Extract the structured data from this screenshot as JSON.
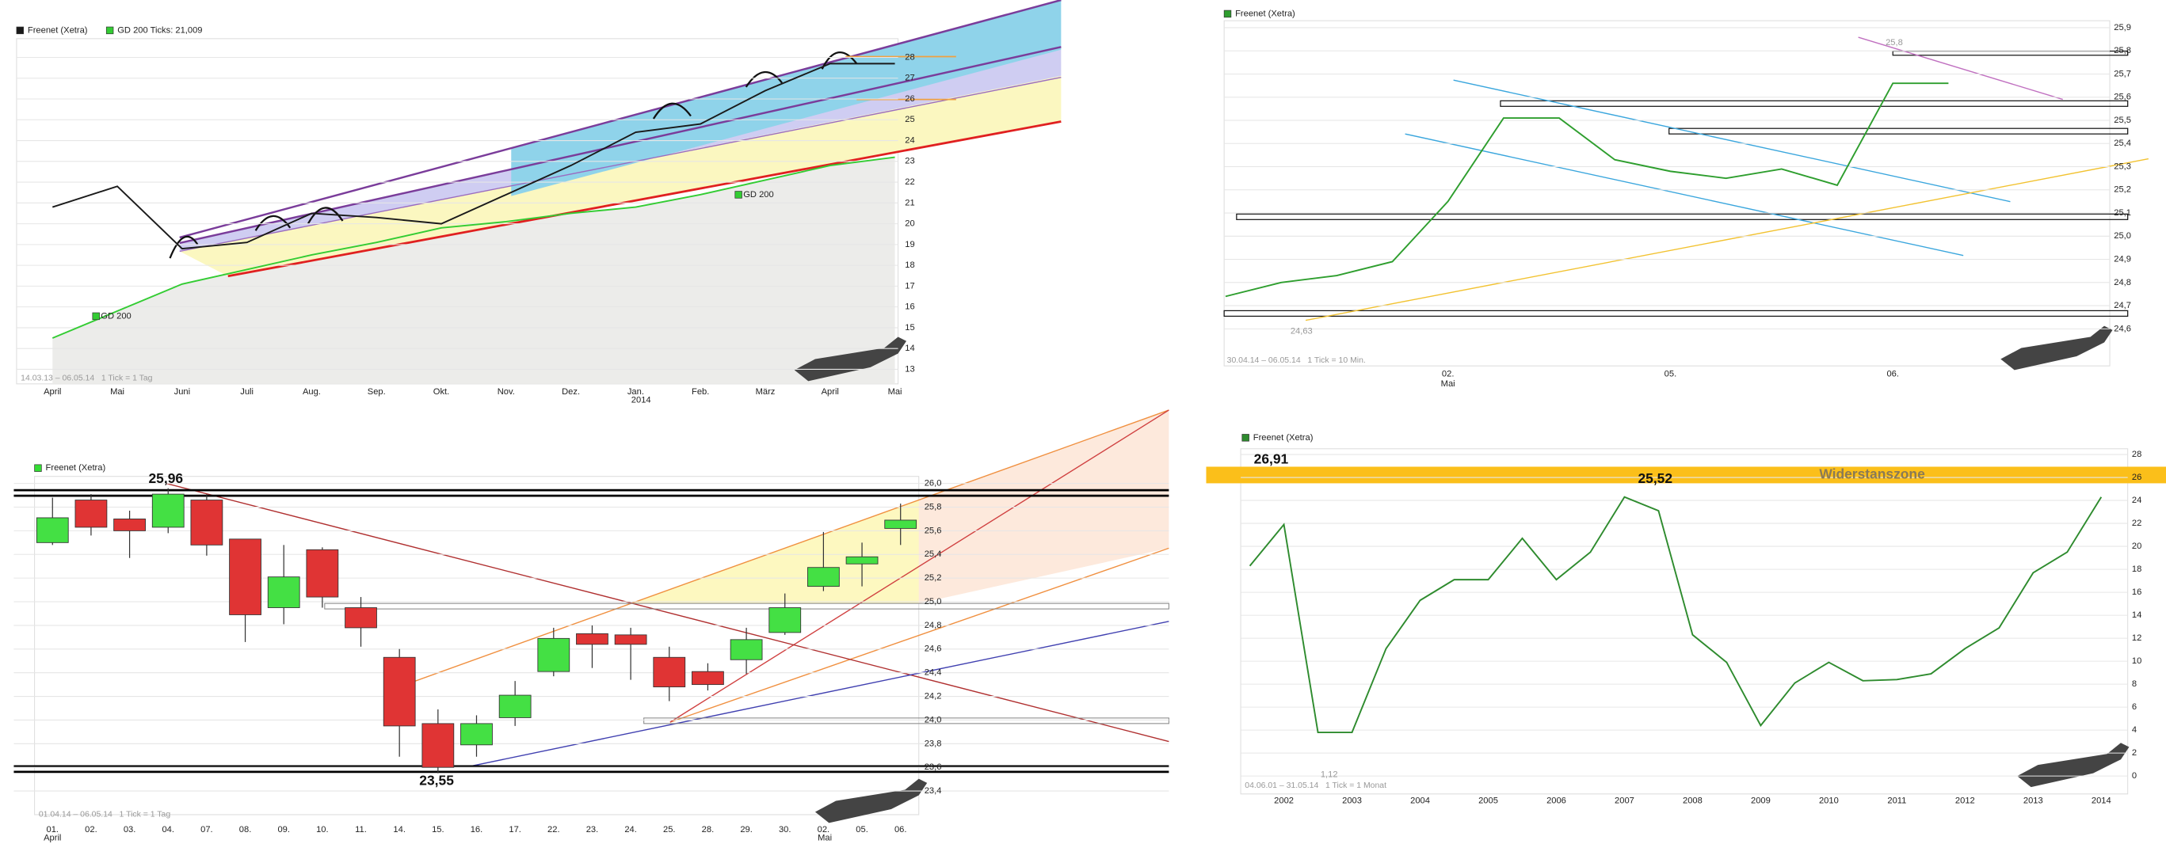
{
  "chart_data": [
    {
      "type": "line",
      "categories": [
        "April",
        "Mai",
        "Juni",
        "Juli",
        "Aug.",
        "Sep.",
        "Okt.",
        "Nov.",
        "Dez.",
        "Jan.",
        "Feb.",
        "März",
        "April",
        "Mai"
      ],
      "series": [
        {
          "name": "Freenet (Xetra)",
          "color": "#1a1a1a",
          "values": [
            20.8,
            21.8,
            18.8,
            19.1,
            20.5,
            20.3,
            20.0,
            21.4,
            22.8,
            24.4,
            24.8,
            26.4,
            27.7,
            27.7
          ]
        },
        {
          "name": "GD 200 Ticks: 21,009",
          "color": "#33cc33",
          "values": [
            14.5,
            15.8,
            17.1,
            17.8,
            18.5,
            19.1,
            19.8,
            20.1,
            20.5,
            20.8,
            21.4,
            22.1,
            22.8,
            23.2
          ]
        }
      ],
      "ylim": [
        12.3,
        28.9
      ],
      "yticks": [
        13,
        14,
        15,
        16,
        17,
        18,
        19,
        20,
        21,
        22,
        23,
        24,
        25,
        26,
        27,
        28
      ],
      "grid": true,
      "annotations": [
        "GD 200",
        "GD 200",
        "2014"
      ],
      "footnote": "14.03.13 – 06.05.14   1 Tick = 1 Tag"
    },
    {
      "type": "line",
      "categories": [
        null,
        null,
        null,
        null,
        "02.",
        null,
        null,
        null,
        "05.",
        null,
        null,
        null,
        "06.",
        null
      ],
      "series": [
        {
          "name": "Freenet (Xetra)",
          "color": "#2e9e2e",
          "values": [
            24.74,
            24.8,
            24.83,
            24.89,
            25.15,
            25.51,
            25.51,
            25.33,
            25.28,
            25.25,
            25.29,
            25.22,
            25.66,
            25.66
          ]
        }
      ],
      "ylim": [
        24.44,
        25.93
      ],
      "yticks": [
        {
          "value": 24.6,
          "label": "24,6"
        },
        {
          "value": 24.7,
          "label": "24,7"
        },
        {
          "value": 24.8,
          "label": "24,8"
        },
        {
          "value": 24.9,
          "label": "24,9"
        },
        {
          "value": 25.0,
          "label": "25,0"
        },
        {
          "value": 25.1,
          "label": "25,1"
        },
        {
          "value": 25.2,
          "label": "25,2"
        },
        {
          "value": 25.3,
          "label": "25,3"
        },
        {
          "value": 25.4,
          "label": "25,4"
        },
        {
          "value": 25.5,
          "label": "25,5"
        },
        {
          "value": 25.6,
          "label": "25,6"
        },
        {
          "value": 25.7,
          "label": "25,7"
        },
        {
          "value": 25.8,
          "label": "25,8"
        },
        {
          "value": 25.9,
          "label": "25,9"
        }
      ],
      "grid": true,
      "annotations": [
        "25,8",
        "24,63",
        "Mai"
      ],
      "footnote": "30.04.14 – 06.05.14   1 Tick = 10 Min."
    },
    {
      "type": "candlestick",
      "categories": [
        "01.",
        "02.",
        "03.",
        "04.",
        "07.",
        "08.",
        "09.",
        "10.",
        "11.",
        "14.",
        "15.",
        "16.",
        "17.",
        "22.",
        "23.",
        "24.",
        "25.",
        "28.",
        "29.",
        "30.",
        "02.",
        "05.",
        "06."
      ],
      "series": [
        {
          "name": "Freenet (Xetra)",
          "color": "#33dd33",
          "up_color": "#44e044",
          "down_color": "#e03434",
          "open": [
            25.5,
            25.86,
            25.7,
            25.63,
            25.86,
            25.53,
            24.95,
            25.44,
            24.95,
            24.53,
            23.97,
            23.79,
            24.02,
            24.41,
            24.73,
            24.72,
            24.53,
            24.41,
            24.51,
            24.74,
            25.13,
            25.32,
            25.62
          ],
          "high": [
            25.88,
            25.91,
            25.77,
            25.96,
            25.91,
            25.53,
            25.48,
            25.46,
            25.04,
            24.6,
            24.09,
            24.04,
            24.33,
            24.78,
            24.8,
            24.78,
            24.62,
            24.48,
            24.78,
            25.07,
            25.59,
            25.5,
            25.83
          ],
          "low": [
            25.48,
            25.56,
            25.37,
            25.58,
            25.39,
            24.66,
            24.81,
            24.95,
            24.62,
            23.69,
            23.55,
            23.69,
            23.95,
            24.37,
            24.44,
            24.34,
            24.16,
            24.25,
            24.39,
            24.72,
            25.09,
            25.13,
            25.48
          ],
          "close": [
            25.71,
            25.63,
            25.6,
            25.91,
            25.48,
            24.89,
            25.21,
            25.04,
            24.78,
            23.95,
            23.6,
            23.97,
            24.21,
            24.69,
            24.64,
            24.64,
            24.28,
            24.3,
            24.68,
            24.95,
            25.29,
            25.38,
            25.69
          ]
        }
      ],
      "ylim": [
        23.2,
        26.06
      ],
      "yticks": [
        {
          "value": 23.4,
          "label": "23,4"
        },
        {
          "value": 23.6,
          "label": "23,6"
        },
        {
          "value": 23.8,
          "label": "23,8"
        },
        {
          "value": 24.0,
          "label": "24,0"
        },
        {
          "value": 24.2,
          "label": "24,2"
        },
        {
          "value": 24.4,
          "label": "24,4"
        },
        {
          "value": 24.6,
          "label": "24,6"
        },
        {
          "value": 24.8,
          "label": "24,8"
        },
        {
          "value": 25.0,
          "label": "25,0"
        },
        {
          "value": 25.2,
          "label": "25,2"
        },
        {
          "value": 25.4,
          "label": "25,4"
        },
        {
          "value": 25.6,
          "label": "25,6"
        },
        {
          "value": 25.8,
          "label": "25,8"
        },
        {
          "value": 26.0,
          "label": "26,0"
        }
      ],
      "grid": true,
      "annotations": [
        "25,96",
        "23,55",
        "April",
        "Mai"
      ],
      "footnote": "01.04.14 – 06.05.14   1 Tick = 1 Tag"
    },
    {
      "type": "line",
      "categories": [
        null,
        "2002",
        null,
        "2003",
        null,
        "2004",
        null,
        "2005",
        null,
        "2006",
        null,
        "2007",
        null,
        "2008",
        null,
        "2009",
        null,
        "2010",
        null,
        "2011",
        null,
        "2012",
        null,
        "2013",
        null,
        "2014"
      ],
      "series": [
        {
          "name": "Freenet (Xetra)",
          "color": "#2e8b2e",
          "values": [
            18.3,
            21.9,
            3.8,
            3.8,
            11.1,
            15.3,
            17.1,
            17.1,
            20.7,
            17.1,
            19.5,
            24.3,
            23.1,
            12.3,
            9.9,
            4.4,
            8.1,
            9.9,
            8.3,
            8.4,
            8.9,
            11.1,
            12.9,
            17.7,
            19.5,
            24.3
          ]
        }
      ],
      "ylim": [
        -1.56,
        28.5
      ],
      "yticks": [
        0,
        2,
        4,
        6,
        8,
        10,
        12,
        14,
        16,
        18,
        20,
        22,
        24,
        26,
        28
      ],
      "grid": true,
      "annotations": [
        "26,91",
        "25,52",
        "1,12",
        "Widerstanszone"
      ],
      "footnote": "04.06.01 – 31.05.14   1 Tick = 1 Monat"
    }
  ]
}
